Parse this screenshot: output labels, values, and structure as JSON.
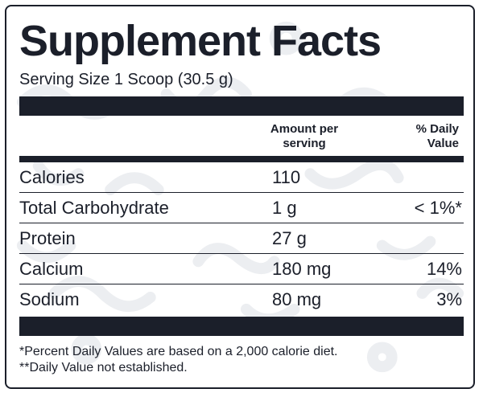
{
  "title": "Supplement Facts",
  "serving_size": "Serving Size 1 Scoop (30.5 g)",
  "columns": {
    "amount_header_line1": "Amount per",
    "amount_header_line2": "serving",
    "dv_header_line1": "% Daily",
    "dv_header_line2": "Value"
  },
  "nutrients": [
    {
      "name": "Calories",
      "amount": "110",
      "dv": ""
    },
    {
      "name": "Total Carbohydrate",
      "amount": "1 g",
      "dv": "< 1%*"
    },
    {
      "name": "Protein",
      "amount": "27 g",
      "dv": ""
    },
    {
      "name": "Calcium",
      "amount": "180 mg",
      "dv": "14%"
    },
    {
      "name": "Sodium",
      "amount": "80 mg",
      "dv": "3%"
    }
  ],
  "footnotes": [
    "*Percent Daily Values are based on a 2,000 calorie diet.",
    "**Daily Value not established."
  ],
  "colors": {
    "ink": "#1b1f2a",
    "background": "#ffffff",
    "watermark": "#eceef1"
  }
}
